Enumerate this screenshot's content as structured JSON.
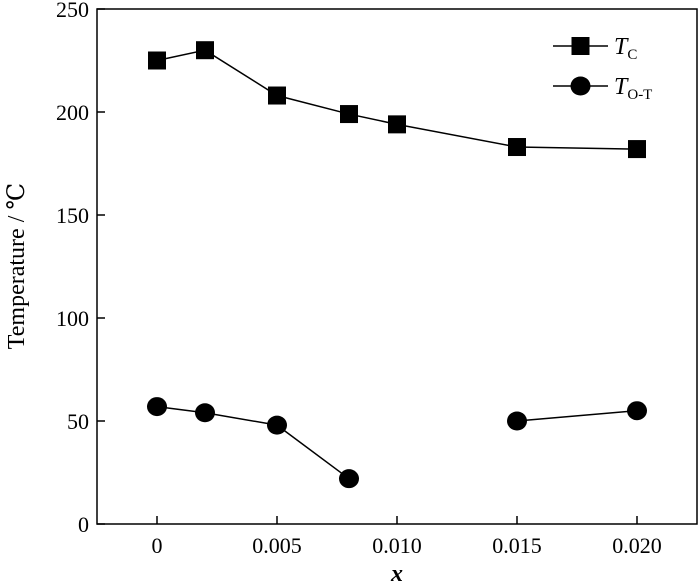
{
  "chart_data": {
    "type": "line",
    "xlabel": "x",
    "ylabel": "Temperature / ℃",
    "xlim": [
      -0.0025,
      0.0225
    ],
    "ylim": [
      0,
      250
    ],
    "xticks": [
      0,
      0.005,
      0.01,
      0.015,
      0.02
    ],
    "xtick_labels": [
      "0",
      "0.005",
      "0.010",
      "0.015",
      "0.020"
    ],
    "yticks": [
      0,
      50,
      100,
      150,
      200,
      250
    ],
    "ytick_labels": [
      "0",
      "50",
      "100",
      "150",
      "200",
      "250"
    ],
    "legend_position": "top-right",
    "grid": false,
    "series": [
      {
        "name_main": "T",
        "name_sub": "C",
        "marker": "square",
        "color": "#000000",
        "segments": [
          [
            [
              0,
              225
            ],
            [
              0.002,
              230
            ],
            [
              0.005,
              208
            ],
            [
              0.008,
              199
            ],
            [
              0.01,
              194
            ],
            [
              0.015,
              183
            ],
            [
              0.02,
              182
            ]
          ]
        ]
      },
      {
        "name_main": "T",
        "name_sub": "O-T",
        "marker": "circle",
        "color": "#000000",
        "segments": [
          [
            [
              0,
              57
            ],
            [
              0.002,
              54
            ],
            [
              0.005,
              48
            ],
            [
              0.008,
              22
            ]
          ],
          [
            [
              0.015,
              50
            ],
            [
              0.02,
              55
            ]
          ]
        ]
      }
    ]
  }
}
